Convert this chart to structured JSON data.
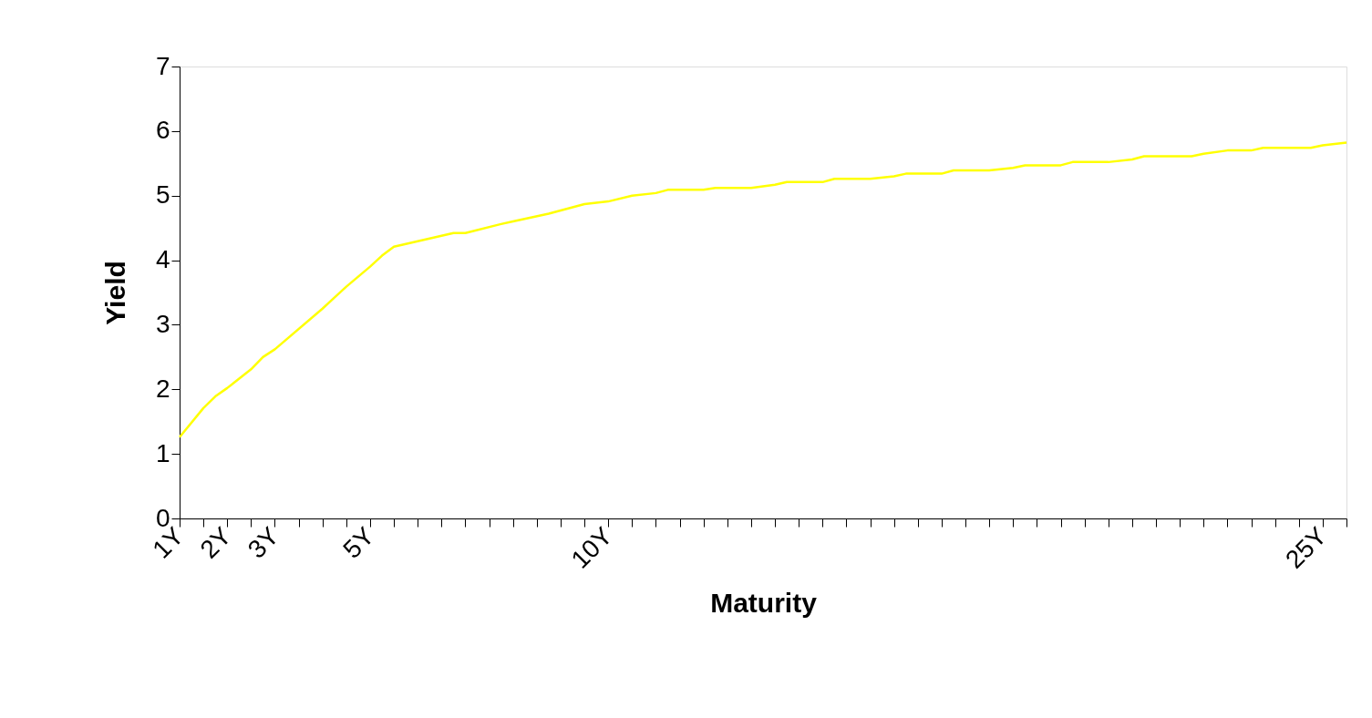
{
  "chart_data": {
    "type": "line",
    "xlabel": "Maturity",
    "ylabel": "Yield",
    "xlim": [
      1,
      25.5
    ],
    "ylim": [
      0,
      7
    ],
    "yticks": [
      0,
      1,
      2,
      3,
      4,
      5,
      6,
      7
    ],
    "xticks": [
      {
        "value": 1,
        "label": "1Y"
      },
      {
        "value": 1.5,
        "label": null
      },
      {
        "value": 2,
        "label": "2Y"
      },
      {
        "value": 2.5,
        "label": null
      },
      {
        "value": 3,
        "label": "3Y"
      },
      {
        "value": 3.5,
        "label": null
      },
      {
        "value": 4,
        "label": null
      },
      {
        "value": 4.5,
        "label": null
      },
      {
        "value": 5,
        "label": "5Y"
      },
      {
        "value": 5.5,
        "label": null
      },
      {
        "value": 6,
        "label": null
      },
      {
        "value": 6.5,
        "label": null
      },
      {
        "value": 7,
        "label": null
      },
      {
        "value": 7.5,
        "label": null
      },
      {
        "value": 8,
        "label": null
      },
      {
        "value": 8.5,
        "label": null
      },
      {
        "value": 9,
        "label": null
      },
      {
        "value": 9.5,
        "label": null
      },
      {
        "value": 10,
        "label": "10Y"
      },
      {
        "value": 10.5,
        "label": null
      },
      {
        "value": 11,
        "label": null
      },
      {
        "value": 11.5,
        "label": null
      },
      {
        "value": 12,
        "label": null
      },
      {
        "value": 12.5,
        "label": null
      },
      {
        "value": 13,
        "label": null
      },
      {
        "value": 13.5,
        "label": null
      },
      {
        "value": 14,
        "label": null
      },
      {
        "value": 14.5,
        "label": null
      },
      {
        "value": 15,
        "label": null
      },
      {
        "value": 15.5,
        "label": null
      },
      {
        "value": 16,
        "label": null
      },
      {
        "value": 16.5,
        "label": null
      },
      {
        "value": 17,
        "label": null
      },
      {
        "value": 17.5,
        "label": null
      },
      {
        "value": 18,
        "label": null
      },
      {
        "value": 18.5,
        "label": null
      },
      {
        "value": 19,
        "label": null
      },
      {
        "value": 19.5,
        "label": null
      },
      {
        "value": 20,
        "label": null
      },
      {
        "value": 20.5,
        "label": null
      },
      {
        "value": 21,
        "label": null
      },
      {
        "value": 21.5,
        "label": null
      },
      {
        "value": 22,
        "label": null
      },
      {
        "value": 22.5,
        "label": null
      },
      {
        "value": 23,
        "label": null
      },
      {
        "value": 23.5,
        "label": null
      },
      {
        "value": 24,
        "label": null
      },
      {
        "value": 24.5,
        "label": null
      },
      {
        "value": 25,
        "label": "25Y"
      },
      {
        "value": 25.5,
        "label": null
      }
    ],
    "grid": false,
    "legend": false,
    "marker": "none",
    "line_style": "solid",
    "series": [
      {
        "color": "#ffff00",
        "x": [
          1,
          1.5,
          1.75,
          2,
          2.5,
          2.75,
          3,
          4,
          4.25,
          4.5,
          5,
          5.25,
          5.5,
          6.75,
          7,
          7.75,
          8,
          8.75,
          9,
          9.5,
          10,
          10.5,
          11,
          11.25,
          12,
          12.25,
          13,
          13.5,
          13.75,
          14.5,
          14.75,
          15.5,
          16,
          16.25,
          17,
          17.25,
          18,
          18.5,
          18.75,
          19.5,
          19.75,
          20.5,
          21,
          21.25,
          22.25,
          22.5,
          23,
          23.5,
          23.75,
          24.75,
          25,
          25.5
        ],
        "values": [
          1.26,
          1.71,
          1.89,
          2.02,
          2.31,
          2.5,
          2.62,
          3.25,
          3.42,
          3.59,
          3.9,
          4.07,
          4.21,
          4.42,
          4.42,
          4.56,
          4.6,
          4.72,
          4.77,
          4.87,
          4.91,
          5.0,
          5.04,
          5.09,
          5.09,
          5.12,
          5.12,
          5.17,
          5.21,
          5.21,
          5.26,
          5.26,
          5.3,
          5.34,
          5.34,
          5.39,
          5.39,
          5.43,
          5.47,
          5.47,
          5.52,
          5.52,
          5.56,
          5.61,
          5.61,
          5.65,
          5.7,
          5.7,
          5.74,
          5.74,
          5.78,
          5.82
        ]
      }
    ]
  }
}
